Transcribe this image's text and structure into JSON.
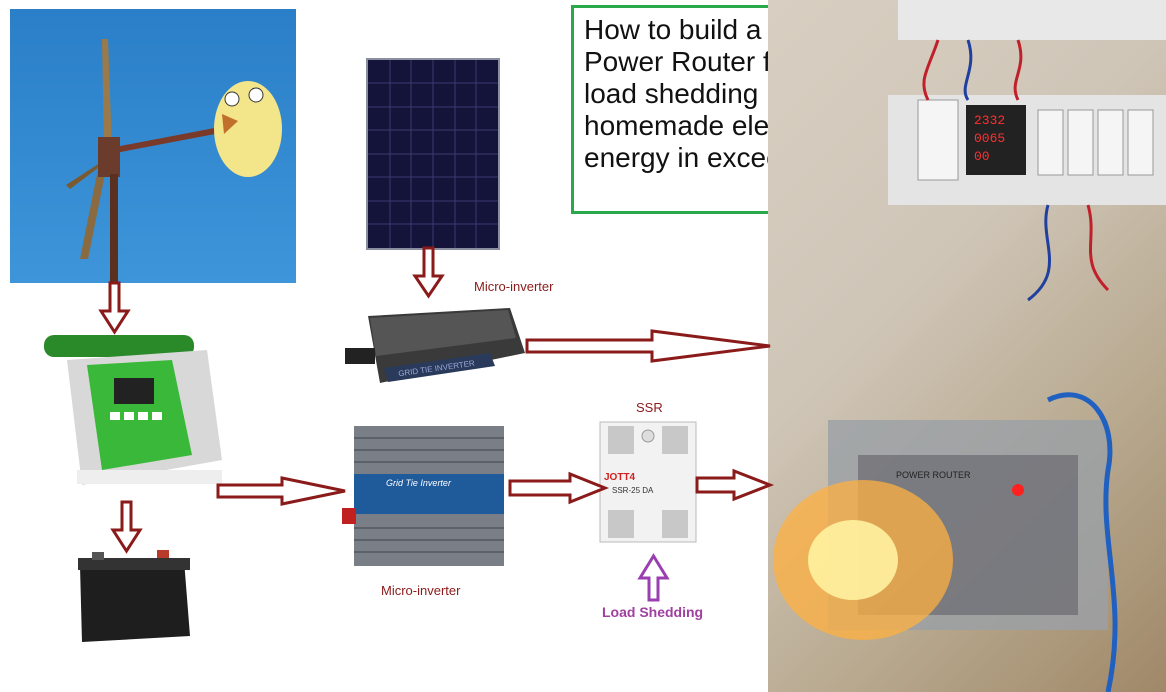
{
  "title_lines": [
    "How to build a",
    "Power Router for",
    "load shedding",
    "homemade electric",
    "energy in exceed"
  ],
  "labels": {
    "micro_inverter_top": "Micro-inverter",
    "micro_inverter_bottom": "Micro-inverter",
    "ssr": "SSR",
    "load_shedding": "Load Shedding"
  },
  "device_text": {
    "inverter_top_plate": "GRID TIE INVERTER",
    "inverter_bottom_plate": "Grid Tie Inverter",
    "ssr_brand": "JOTT4",
    "ssr_model": "SSR-25 DA",
    "power_router_box": "POWER ROUTER",
    "meter_values": [
      "2332",
      "0065",
      "00"
    ]
  },
  "colors": {
    "arrow": "#8b1a1a",
    "purple_arrow": "#9a3fb0",
    "load_shedding_text": "#a040a0",
    "title_border": "#2aa84a",
    "label_red": "#8b1a1a"
  }
}
